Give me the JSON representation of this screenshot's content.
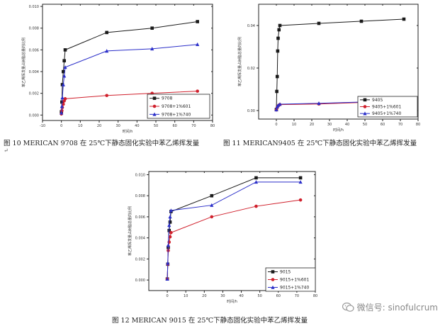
{
  "colors": {
    "s1": "#1a1a1a",
    "s2": "#d0202c",
    "s3": "#2b2fc9"
  },
  "chart_data": [
    {
      "type": "line",
      "id": "c1",
      "caption": "图 10  MERICAN 9708 在 25℃下静态固化实验中苯乙烯挥发量",
      "ylabel": "苯乙烯挥发量占树脂总量的比例",
      "xlabel": "时间/h",
      "xlim": [
        -10,
        80
      ],
      "ylim": [
        -0.0005,
        0.0102
      ],
      "xticks": [
        -10,
        0,
        10,
        20,
        30,
        40,
        50,
        60,
        70,
        80
      ],
      "yticks": [
        0.0,
        0.002,
        0.004,
        0.006,
        0.008,
        0.01
      ],
      "ytick_labels": [
        "0.000",
        "0.002",
        "0.004",
        "0.006",
        "0.008",
        "0.010"
      ],
      "series": [
        {
          "name": "9708",
          "color": "#1a1a1a",
          "marker": "square",
          "x": [
            0,
            0.25,
            0.5,
            1,
            1.5,
            2,
            24,
            48,
            72
          ],
          "y": [
            0.0003,
            0.0012,
            0.0028,
            0.004,
            0.005,
            0.006,
            0.0076,
            0.008,
            0.0086
          ]
        },
        {
          "name": "9708+1%601",
          "color": "#d0202c",
          "marker": "circle",
          "x": [
            0,
            0.25,
            0.5,
            1,
            1.5,
            2,
            24,
            48,
            72
          ],
          "y": [
            0.0001,
            0.0004,
            0.0007,
            0.001,
            0.0013,
            0.0015,
            0.0018,
            0.002,
            0.0022
          ]
        },
        {
          "name": "9708+1%740",
          "color": "#2b2fc9",
          "marker": "triangle",
          "x": [
            0,
            0.25,
            0.5,
            1,
            1.5,
            2,
            24,
            48,
            72
          ],
          "y": [
            0.0002,
            0.0008,
            0.0016,
            0.0028,
            0.0036,
            0.0044,
            0.0059,
            0.0061,
            0.0065
          ]
        }
      ]
    },
    {
      "type": "line",
      "id": "c2",
      "caption": "图 11  MERICAN9405 在 25℃下静态固化实验中苯乙烯挥发量",
      "ylabel": "苯乙烯挥发量占树脂总量的比例",
      "xlabel": "时间/h",
      "xlim": [
        -10,
        80
      ],
      "ylim": [
        -0.004,
        0.05
      ],
      "xticks": [
        0,
        10,
        20,
        30,
        40,
        50,
        60,
        70,
        80
      ],
      "yticks": [
        0.0,
        0.02,
        0.04
      ],
      "ytick_labels": [
        "0.00",
        "0.02",
        "0.04"
      ],
      "series": [
        {
          "name": "9405",
          "color": "#1a1a1a",
          "marker": "square",
          "x": [
            0,
            0.25,
            0.5,
            0.75,
            1,
            1.5,
            2,
            24,
            48,
            72
          ],
          "y": [
            0.0005,
            0.009,
            0.016,
            0.028,
            0.034,
            0.038,
            0.04,
            0.041,
            0.042,
            0.043
          ]
        },
        {
          "name": "9405+1%601",
          "color": "#d0202c",
          "marker": "circle",
          "x": [
            0,
            0.5,
            1,
            2,
            24,
            48,
            72
          ],
          "y": [
            0.0003,
            0.0015,
            0.0022,
            0.0028,
            0.0031,
            0.0038,
            0.0043
          ]
        },
        {
          "name": "9405+1%740",
          "color": "#2b2fc9",
          "marker": "triangle",
          "x": [
            0,
            0.5,
            1,
            2,
            24,
            48,
            72
          ],
          "y": [
            0.0004,
            0.0018,
            0.0025,
            0.003,
            0.0034,
            0.004,
            0.0046
          ]
        }
      ]
    },
    {
      "type": "line",
      "id": "c3",
      "caption": "图 12  MERICAN 9015 在 25℃下静态固化实验中苯乙烯挥发量",
      "ylabel": "苯乙烯挥发量占树脂总量的比例",
      "xlabel": "时间/h",
      "xlim": [
        -10,
        80
      ],
      "ylim": [
        -0.001,
        0.0103
      ],
      "xticks": [
        0,
        10,
        20,
        30,
        40,
        50,
        60,
        70,
        80
      ],
      "yticks": [
        0.0,
        0.002,
        0.004,
        0.006,
        0.008,
        0.01
      ],
      "ytick_labels": [
        "0.000",
        "0.002",
        "0.004",
        "0.006",
        "0.008",
        "0.010"
      ],
      "series": [
        {
          "name": "9015",
          "color": "#1a1a1a",
          "marker": "square",
          "x": [
            0,
            0.25,
            0.5,
            1,
            1.5,
            2,
            24,
            48,
            72
          ],
          "y": [
            0.0001,
            0.0015,
            0.0031,
            0.0047,
            0.0055,
            0.0065,
            0.008,
            0.0097,
            0.0097
          ]
        },
        {
          "name": "9015+1%601",
          "color": "#d0202c",
          "marker": "circle",
          "x": [
            0,
            0.25,
            0.5,
            1,
            1.5,
            2,
            24,
            48,
            72
          ],
          "y": [
            0.0001,
            0.0015,
            0.0028,
            0.0036,
            0.0041,
            0.0045,
            0.006,
            0.007,
            0.0076
          ]
        },
        {
          "name": "9015+1%740",
          "color": "#2b2fc9",
          "marker": "triangle",
          "x": [
            0,
            0.25,
            0.5,
            1,
            1.5,
            2,
            24,
            48,
            72
          ],
          "y": [
            0.0001,
            0.0016,
            0.0033,
            0.0052,
            0.006,
            0.0066,
            0.0071,
            0.0093,
            0.0093
          ]
        }
      ]
    }
  ],
  "watermark": {
    "text": "微信号: sinofulcrum",
    "icon": "wechat-icon"
  },
  "return_mark": "↵"
}
